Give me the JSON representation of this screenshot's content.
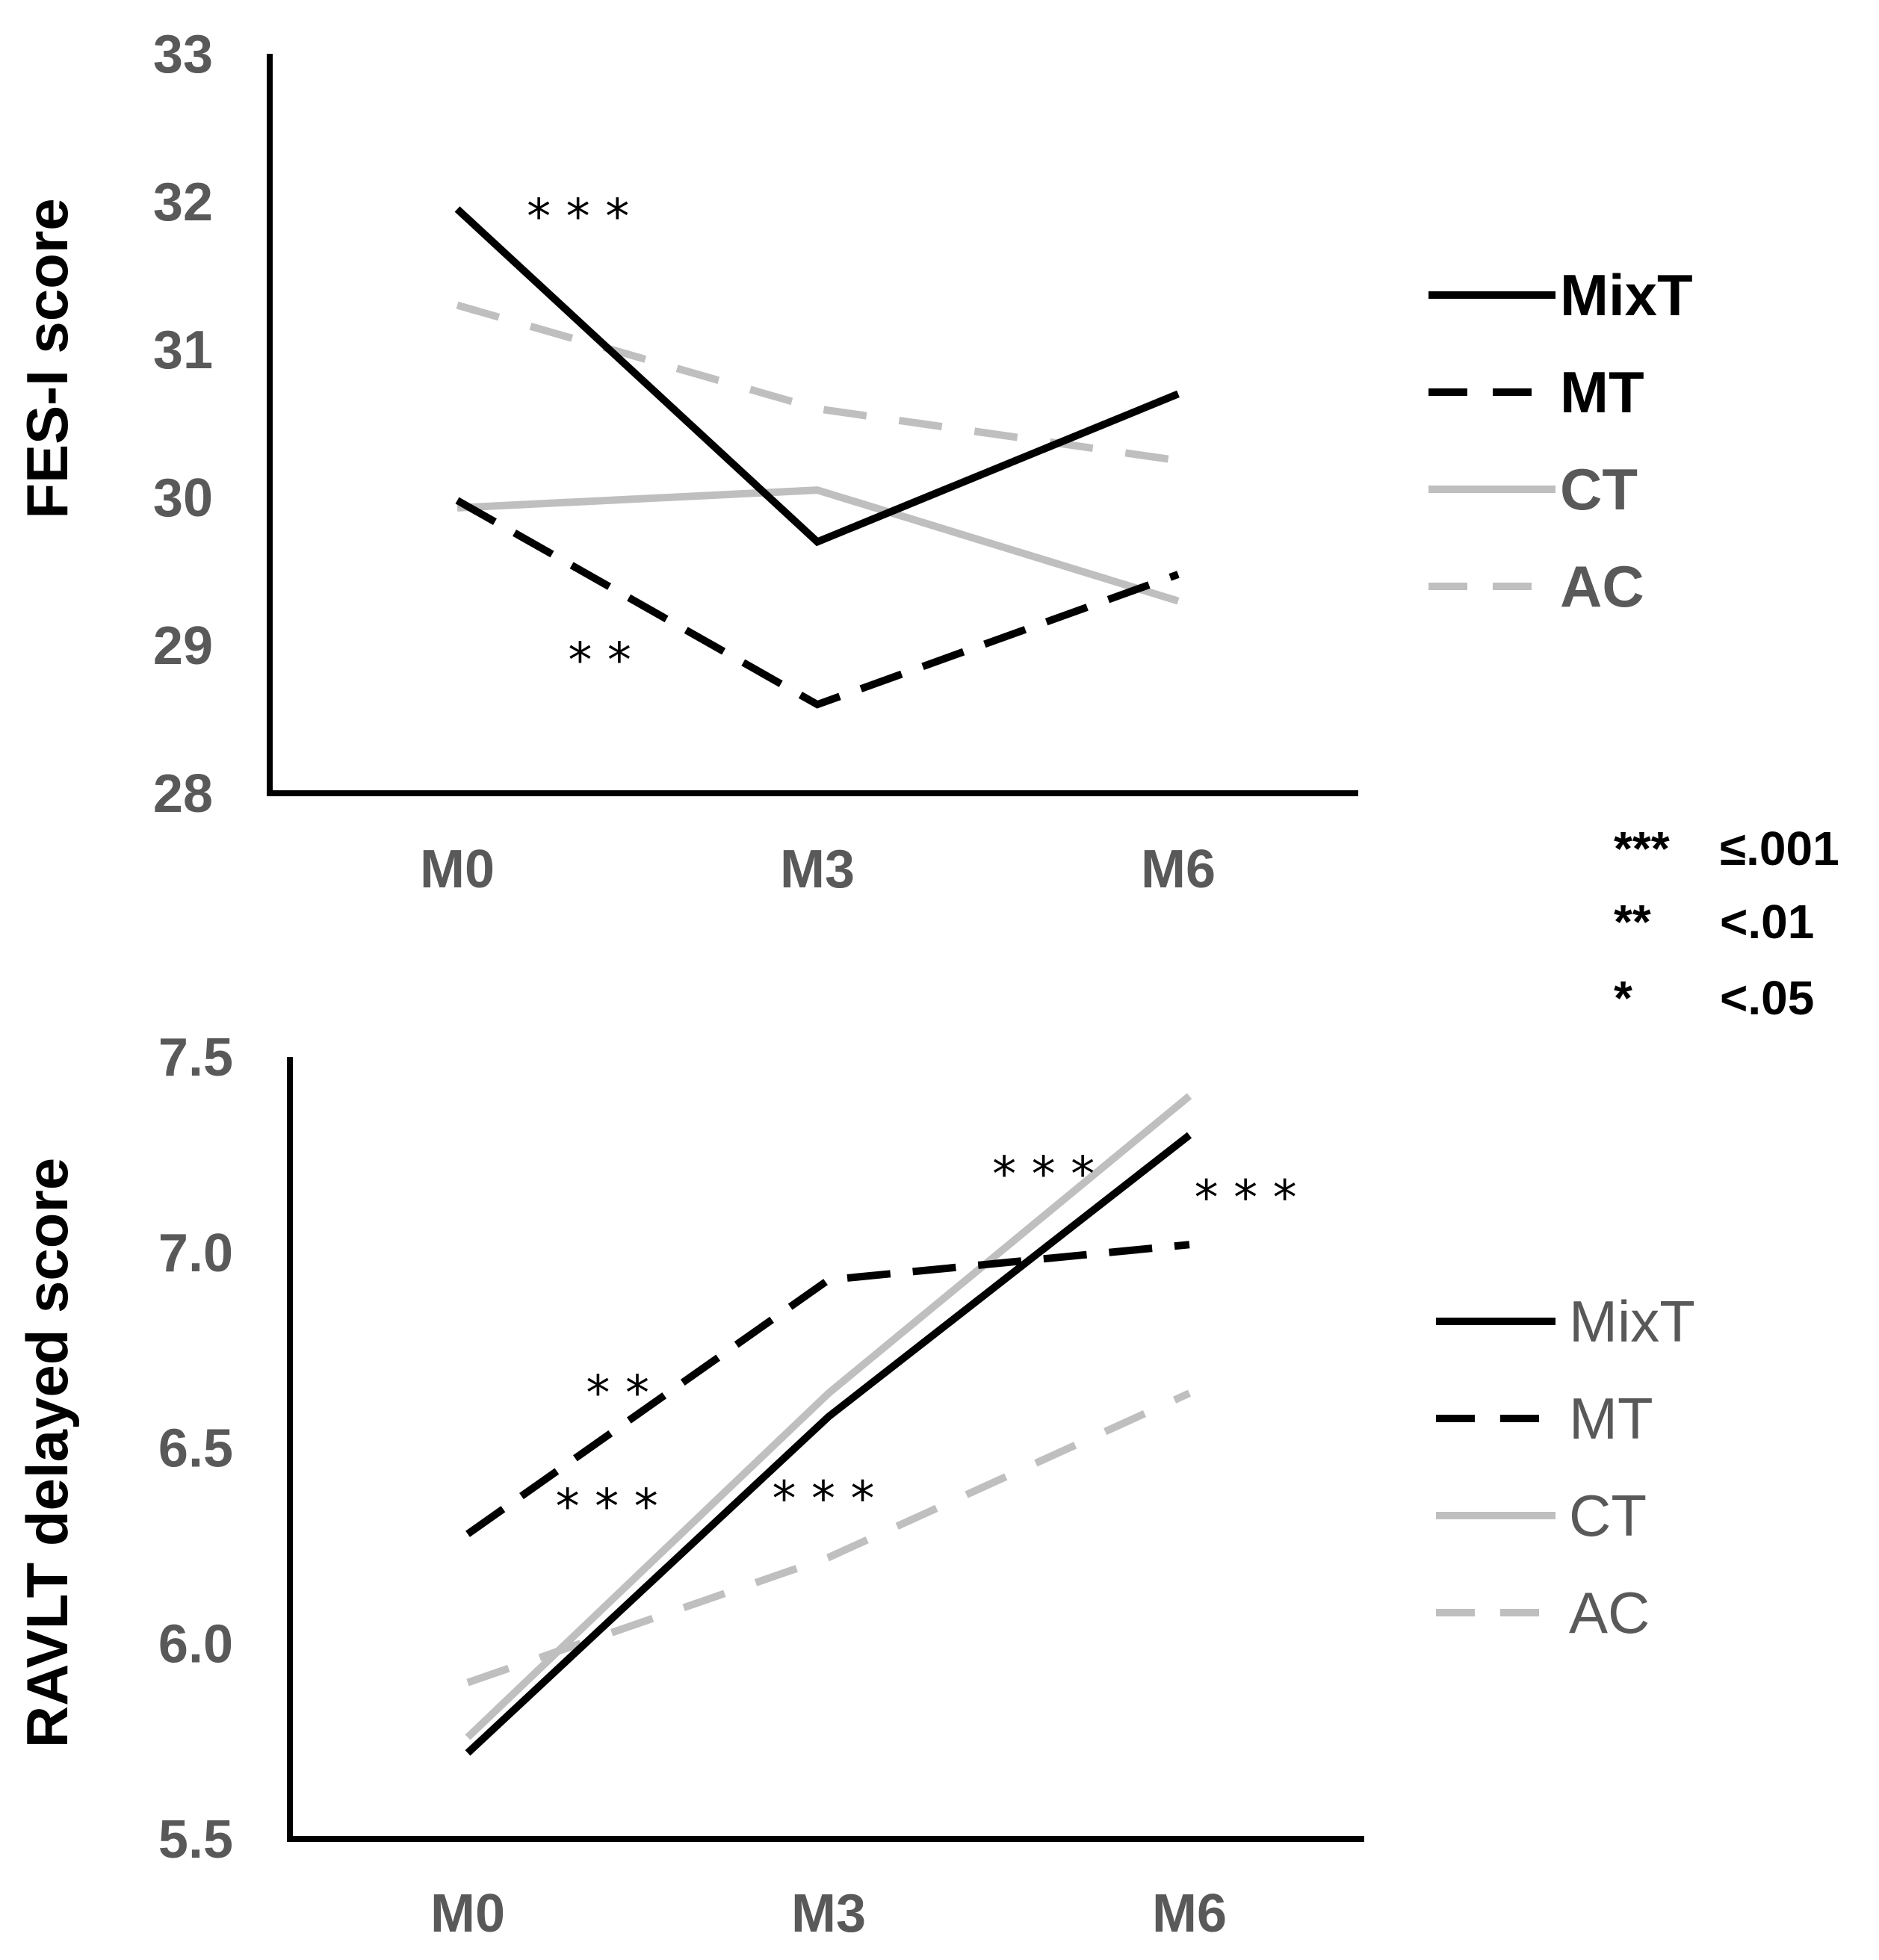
{
  "chart_data": [
    {
      "type": "line",
      "title": "",
      "xlabel": "",
      "ylabel": "FES-I score",
      "categories": [
        "M0",
        "M3",
        "M6"
      ],
      "yticks": [
        "28",
        "29",
        "30",
        "31",
        "32",
        "33"
      ],
      "ylim": [
        28,
        33
      ],
      "series": [
        {
          "name": "MixT",
          "values": [
            31.95,
            29.7,
            30.7
          ],
          "color": "#000000",
          "dash": "solid"
        },
        {
          "name": "MT",
          "values": [
            29.98,
            28.6,
            29.48
          ],
          "color": "#000000",
          "dash": "dashed"
        },
        {
          "name": "CT",
          "values": [
            29.93,
            30.05,
            29.3
          ],
          "color": "#bfbfbf",
          "dash": "solid"
        },
        {
          "name": "AC",
          "values": [
            31.3,
            30.6,
            30.25
          ],
          "color": "#bfbfbf",
          "dash": "dashed"
        }
      ],
      "annotations": [
        {
          "text": "***",
          "x": 0.35,
          "y": 31.9
        },
        {
          "text": "**",
          "x": 0.41,
          "y": 28.9
        }
      ],
      "legend": {
        "position": "right",
        "labels": [
          "MixT",
          "MT",
          "CT",
          "AC"
        ]
      }
    },
    {
      "type": "line",
      "title": "",
      "xlabel": "",
      "ylabel": "RAVLT delayed score",
      "categories": [
        "M0",
        "M3",
        "M6"
      ],
      "yticks": [
        "5.5",
        "6.0",
        "6.5",
        "7.0",
        "7.5"
      ],
      "ylim": [
        5.5,
        7.5
      ],
      "series": [
        {
          "name": "MixT",
          "values": [
            5.72,
            6.58,
            7.3
          ],
          "color": "#000000",
          "dash": "solid"
        },
        {
          "name": "MT",
          "values": [
            6.28,
            6.93,
            7.02
          ],
          "color": "#000000",
          "dash": "dashed"
        },
        {
          "name": "CT",
          "values": [
            5.76,
            6.64,
            7.4
          ],
          "color": "#bfbfbf",
          "dash": "solid"
        },
        {
          "name": "AC",
          "values": [
            5.9,
            6.22,
            6.64
          ],
          "color": "#bfbfbf",
          "dash": "dashed"
        }
      ],
      "annotations": [
        {
          "text": "**",
          "x": 0.43,
          "y": 6.64
        },
        {
          "text": "***",
          "x": 0.4,
          "y": 6.35
        },
        {
          "text": "***",
          "x": 1.0,
          "y": 6.37
        },
        {
          "text": "***",
          "x": 1.61,
          "y": 7.2
        },
        {
          "text": "***",
          "x": 2.17,
          "y": 7.14
        }
      ],
      "legend": {
        "position": "right",
        "labels": [
          "MixT",
          "MT",
          "CT",
          "AC"
        ]
      }
    }
  ],
  "significance_key": [
    {
      "stars": "***",
      "label": "≤.001"
    },
    {
      "stars": "**",
      "label": "<.01"
    },
    {
      "stars": "*",
      "label": "<.05"
    }
  ]
}
